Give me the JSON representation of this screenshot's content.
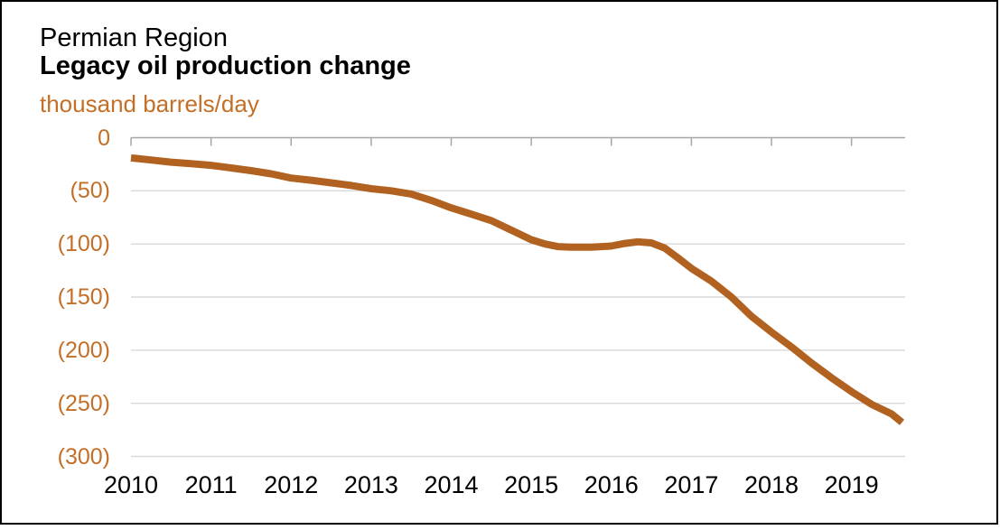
{
  "header": {
    "title": "Permian Region",
    "subtitle": "Legacy oil production change"
  },
  "chart_data": {
    "type": "line",
    "title": "Permian Region",
    "subtitle": "Legacy oil production change",
    "ylabel": "thousand barrels/day",
    "xlabel": "",
    "ylim": [
      -300,
      0
    ],
    "xlim": [
      2010,
      2019.67
    ],
    "grid": "horizontal",
    "legend": "none",
    "y_ticks": [
      0,
      -50,
      -100,
      -150,
      -200,
      -250,
      -300
    ],
    "y_tick_labels": [
      "0",
      "(50)",
      "(100)",
      "(150)",
      "(200)",
      "(250)",
      "(300)"
    ],
    "x_ticks": [
      2010,
      2011,
      2012,
      2013,
      2014,
      2015,
      2016,
      2017,
      2018,
      2019
    ],
    "x_tick_labels": [
      "2010",
      "2011",
      "2012",
      "2013",
      "2014",
      "2015",
      "2016",
      "2017",
      "2018",
      "2019"
    ],
    "series": [
      {
        "name": "Legacy oil production change",
        "color": "#b26220",
        "points": [
          [
            2010.0,
            -19
          ],
          [
            2010.25,
            -21
          ],
          [
            2010.5,
            -23
          ],
          [
            2010.75,
            -24.5
          ],
          [
            2011.0,
            -26
          ],
          [
            2011.25,
            -28.5
          ],
          [
            2011.5,
            -31
          ],
          [
            2011.75,
            -34
          ],
          [
            2012.0,
            -38
          ],
          [
            2012.25,
            -40
          ],
          [
            2012.5,
            -42.5
          ],
          [
            2012.75,
            -45
          ],
          [
            2013.0,
            -48
          ],
          [
            2013.25,
            -50
          ],
          [
            2013.5,
            -53
          ],
          [
            2013.75,
            -59
          ],
          [
            2014.0,
            -66
          ],
          [
            2014.25,
            -72
          ],
          [
            2014.5,
            -78
          ],
          [
            2014.75,
            -87
          ],
          [
            2015.0,
            -96
          ],
          [
            2015.17,
            -100
          ],
          [
            2015.33,
            -102.5
          ],
          [
            2015.5,
            -103
          ],
          [
            2015.75,
            -103
          ],
          [
            2016.0,
            -102
          ],
          [
            2016.17,
            -99.5
          ],
          [
            2016.33,
            -98
          ],
          [
            2016.5,
            -99
          ],
          [
            2016.67,
            -104
          ],
          [
            2016.83,
            -113
          ],
          [
            2017.0,
            -123
          ],
          [
            2017.25,
            -135
          ],
          [
            2017.5,
            -150
          ],
          [
            2017.75,
            -168
          ],
          [
            2018.0,
            -183
          ],
          [
            2018.25,
            -197
          ],
          [
            2018.5,
            -212
          ],
          [
            2018.75,
            -226
          ],
          [
            2019.0,
            -239
          ],
          [
            2019.25,
            -251
          ],
          [
            2019.5,
            -260
          ],
          [
            2019.63,
            -268
          ]
        ]
      }
    ]
  },
  "colors": {
    "accent_orange": "#c36f27",
    "line": "#b26220",
    "gridline": "#d9d9d9",
    "axis": "#a6a6a6",
    "text": "#000000",
    "border": "#000000",
    "background": "#ffffff"
  }
}
